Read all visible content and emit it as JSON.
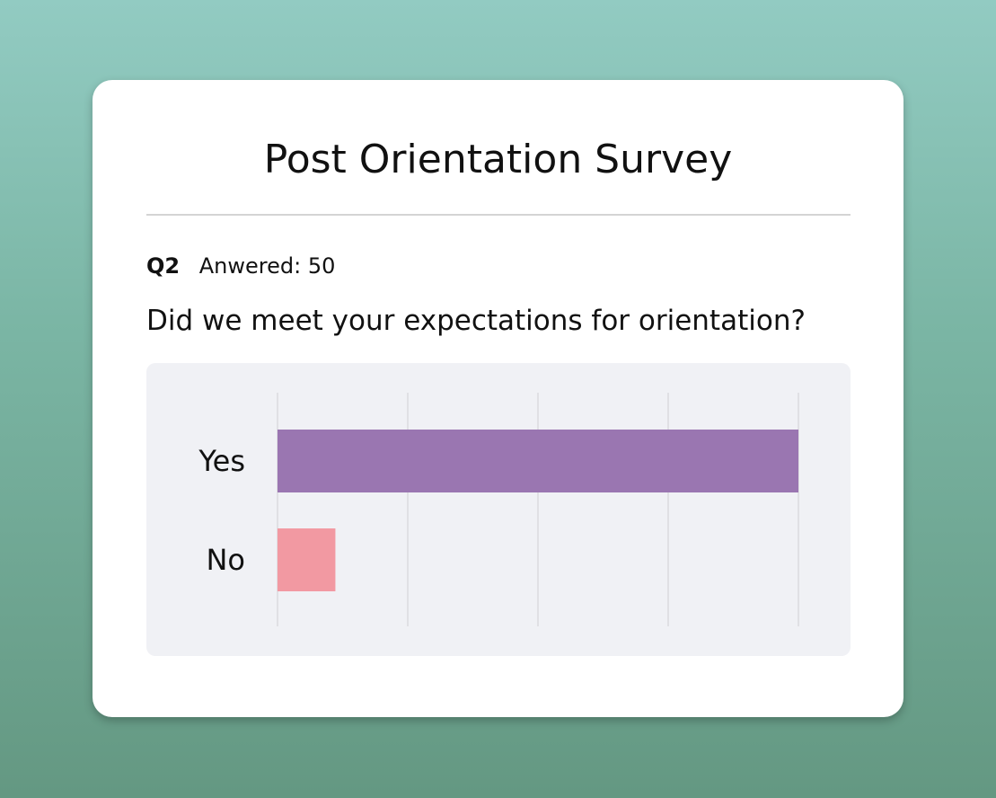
{
  "survey": {
    "title": "Post Orientation Survey",
    "question_number": "Q2",
    "answered_text": "Anwered: 50",
    "question": "Did we meet your expectations for orientation?"
  },
  "colors": {
    "yes_bar": "#9a76b1",
    "no_bar": "#f299a2"
  },
  "chart_data": {
    "type": "bar",
    "orientation": "horizontal",
    "categories": [
      "Yes",
      "No"
    ],
    "values": [
      45,
      5
    ],
    "xlim": [
      0,
      45
    ],
    "grid": true,
    "title": "",
    "xlabel": "",
    "ylabel": ""
  }
}
